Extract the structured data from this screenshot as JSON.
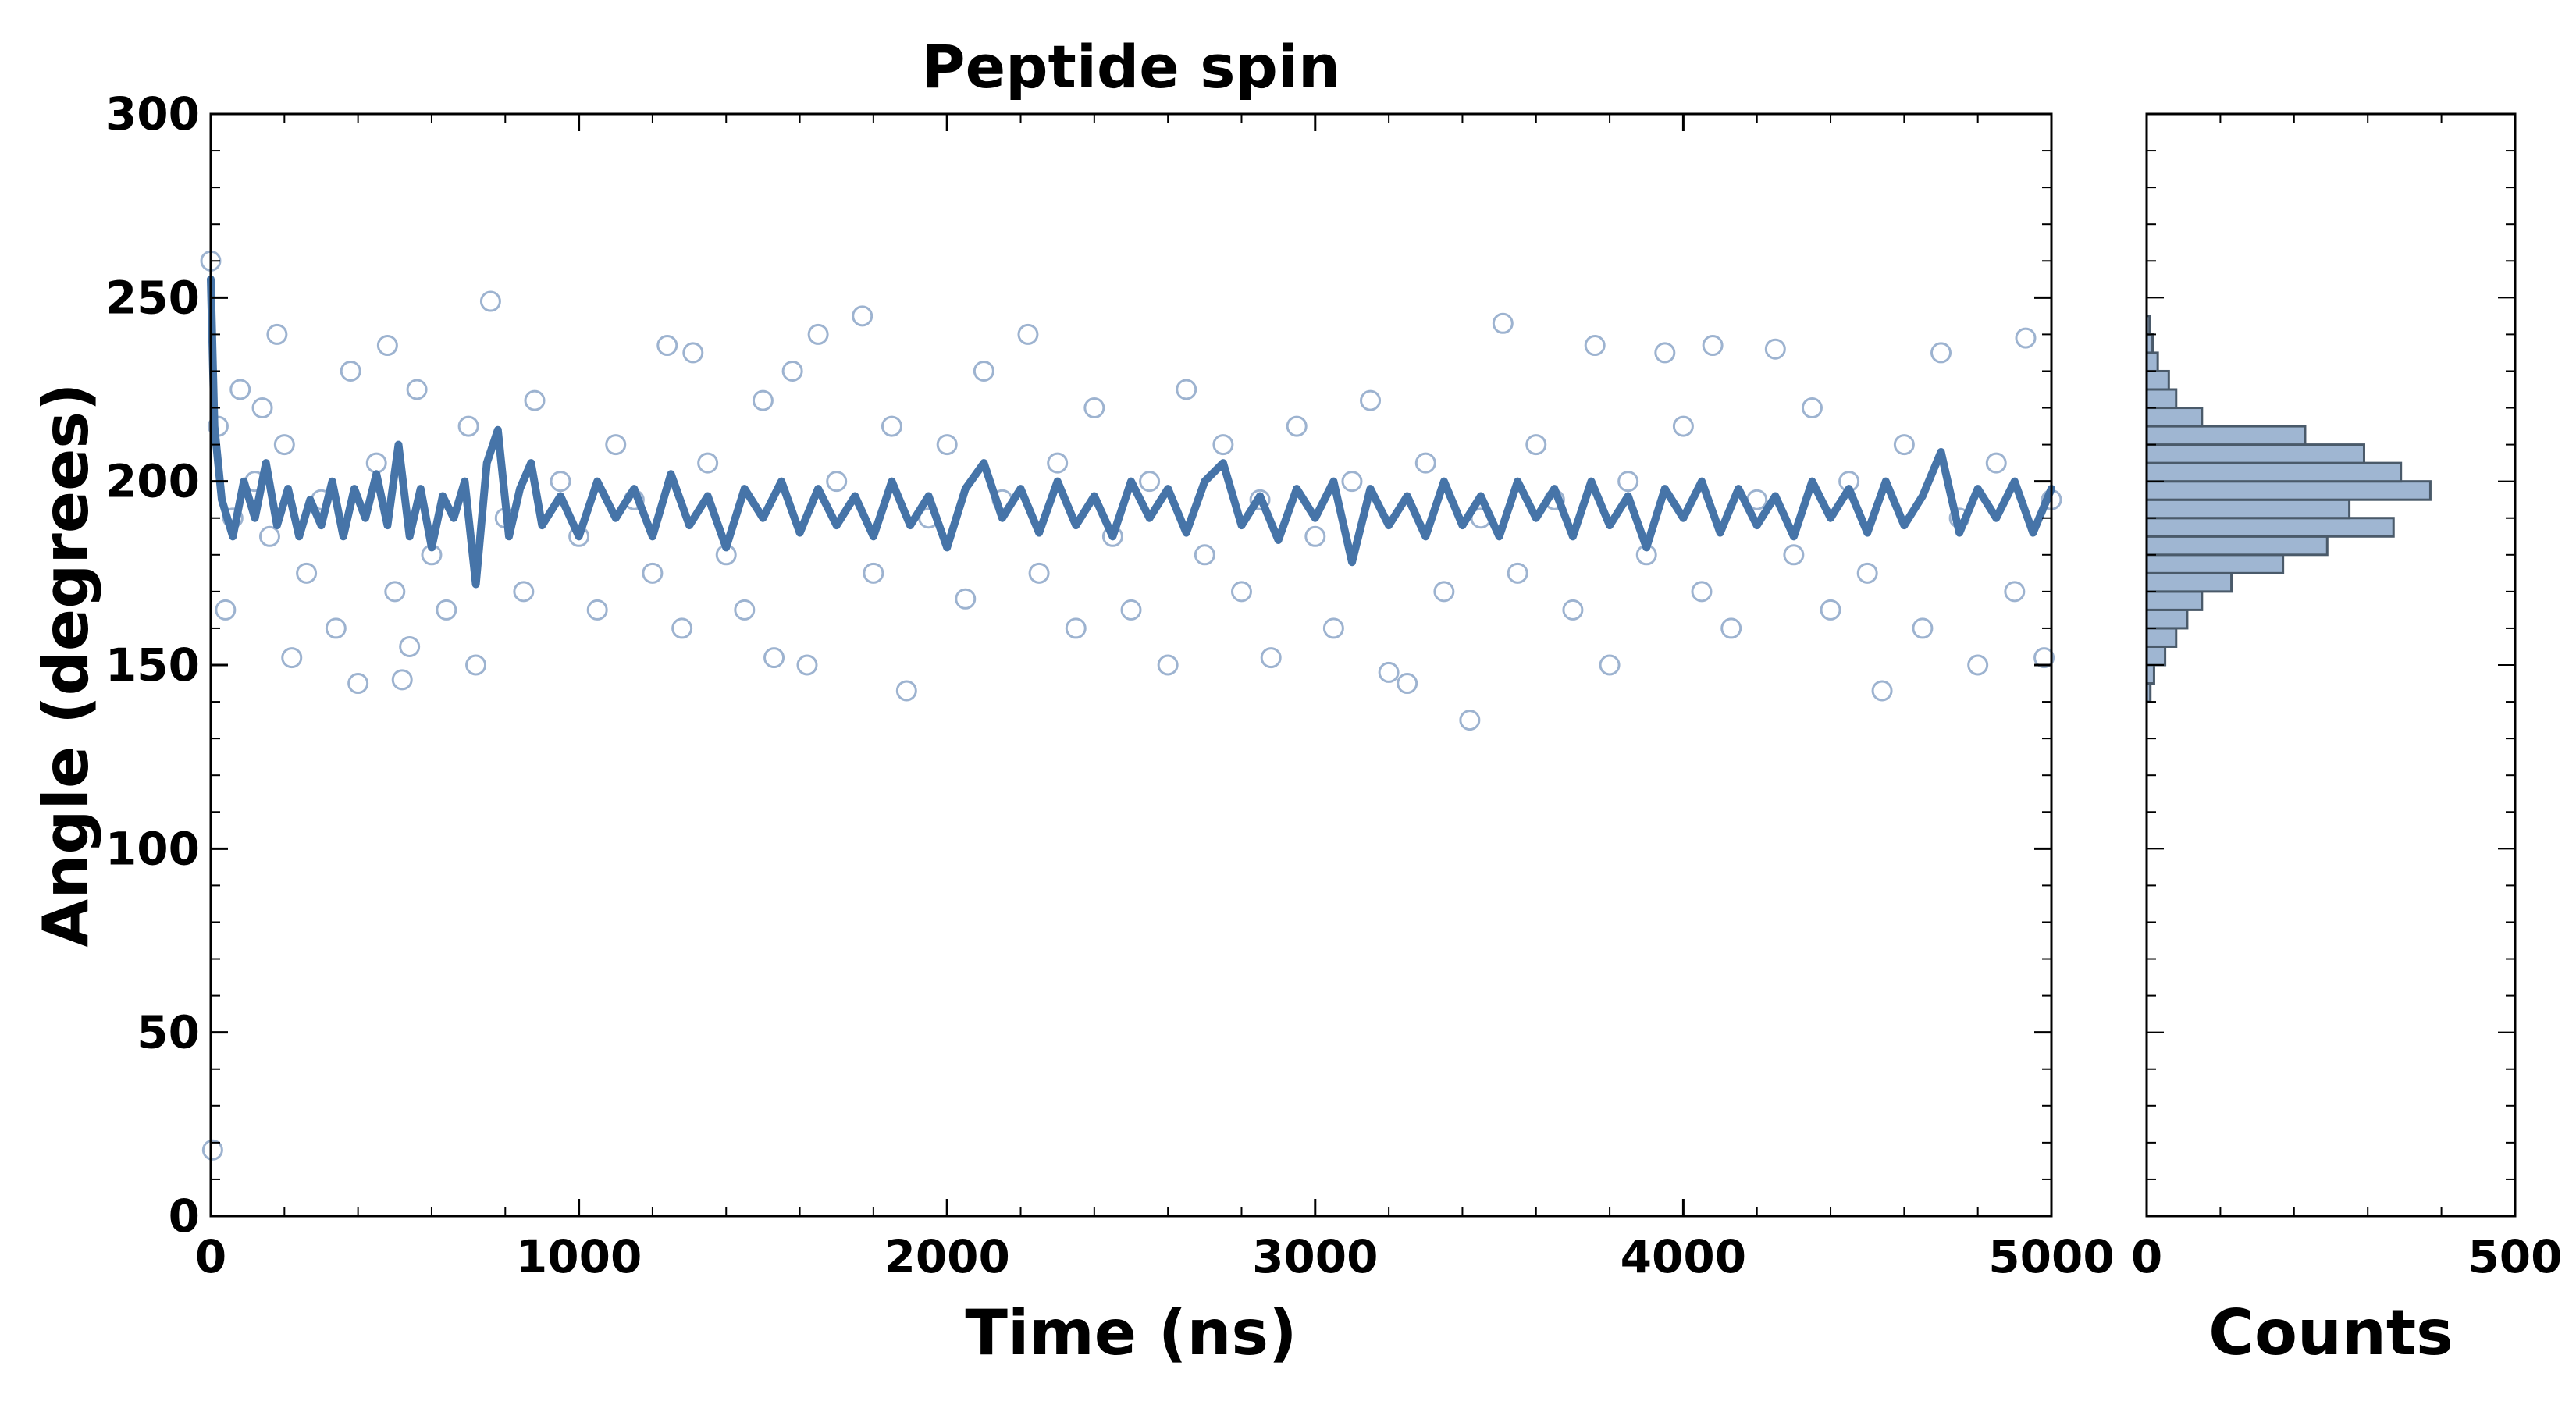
{
  "colors": {
    "series": "#4674a8",
    "scatter_edge": "#9db3d0",
    "hist_fill": "#9fb6d2",
    "hist_edge": "#4a5a6a",
    "axes": "#000000"
  },
  "chart_data": [
    {
      "type": "scatter",
      "title": "Peptide spin",
      "xlabel": "Time (ns)",
      "ylabel": "Angle (degrees)",
      "xlim": [
        0,
        5000
      ],
      "ylim": [
        0,
        300
      ],
      "xticks": [
        "0",
        "1000",
        "2000",
        "3000",
        "4000",
        "5000"
      ],
      "yticks": [
        "0",
        "50",
        "100",
        "150",
        "200",
        "250",
        "300"
      ],
      "grid": false,
      "series": [
        {
          "kind": "scatter",
          "marker": "open-circle",
          "points": [
            [
              0,
              260
            ],
            [
              5,
              18
            ],
            [
              20,
              215
            ],
            [
              40,
              165
            ],
            [
              60,
              190
            ],
            [
              80,
              225
            ],
            [
              120,
              200
            ],
            [
              140,
              220
            ],
            [
              160,
              185
            ],
            [
              180,
              240
            ],
            [
              200,
              210
            ],
            [
              220,
              152
            ],
            [
              260,
              175
            ],
            [
              300,
              195
            ],
            [
              340,
              160
            ],
            [
              380,
              230
            ],
            [
              400,
              145
            ],
            [
              450,
              205
            ],
            [
              480,
              237
            ],
            [
              500,
              170
            ],
            [
              520,
              146
            ],
            [
              540,
              155
            ],
            [
              560,
              225
            ],
            [
              600,
              180
            ],
            [
              640,
              165
            ],
            [
              700,
              215
            ],
            [
              720,
              150
            ],
            [
              760,
              249
            ],
            [
              800,
              190
            ],
            [
              850,
              170
            ],
            [
              880,
              222
            ],
            [
              950,
              200
            ],
            [
              1000,
              185
            ],
            [
              1050,
              165
            ],
            [
              1100,
              210
            ],
            [
              1150,
              195
            ],
            [
              1200,
              175
            ],
            [
              1240,
              237
            ],
            [
              1280,
              160
            ],
            [
              1310,
              235
            ],
            [
              1350,
              205
            ],
            [
              1400,
              180
            ],
            [
              1450,
              165
            ],
            [
              1500,
              222
            ],
            [
              1530,
              152
            ],
            [
              1580,
              230
            ],
            [
              1620,
              150
            ],
            [
              1650,
              240
            ],
            [
              1700,
              200
            ],
            [
              1770,
              245
            ],
            [
              1800,
              175
            ],
            [
              1850,
              215
            ],
            [
              1890,
              143
            ],
            [
              1950,
              190
            ],
            [
              2000,
              210
            ],
            [
              2050,
              168
            ],
            [
              2100,
              230
            ],
            [
              2150,
              195
            ],
            [
              2220,
              240
            ],
            [
              2250,
              175
            ],
            [
              2300,
              205
            ],
            [
              2350,
              160
            ],
            [
              2400,
              220
            ],
            [
              2450,
              185
            ],
            [
              2500,
              165
            ],
            [
              2550,
              200
            ],
            [
              2600,
              150
            ],
            [
              2650,
              225
            ],
            [
              2700,
              180
            ],
            [
              2750,
              210
            ],
            [
              2800,
              170
            ],
            [
              2850,
              195
            ],
            [
              2880,
              152
            ],
            [
              2950,
              215
            ],
            [
              3000,
              185
            ],
            [
              3050,
              160
            ],
            [
              3100,
              200
            ],
            [
              3150,
              222
            ],
            [
              3200,
              148
            ],
            [
              3250,
              145
            ],
            [
              3300,
              205
            ],
            [
              3350,
              170
            ],
            [
              3420,
              135
            ],
            [
              3450,
              190
            ],
            [
              3510,
              243
            ],
            [
              3550,
              175
            ],
            [
              3600,
              210
            ],
            [
              3650,
              195
            ],
            [
              3700,
              165
            ],
            [
              3760,
              237
            ],
            [
              3800,
              150
            ],
            [
              3850,
              200
            ],
            [
              3900,
              180
            ],
            [
              3950,
              235
            ],
            [
              4000,
              215
            ],
            [
              4050,
              170
            ],
            [
              4080,
              237
            ],
            [
              4130,
              160
            ],
            [
              4200,
              195
            ],
            [
              4250,
              236
            ],
            [
              4300,
              180
            ],
            [
              4350,
              220
            ],
            [
              4400,
              165
            ],
            [
              4450,
              200
            ],
            [
              4500,
              175
            ],
            [
              4540,
              143
            ],
            [
              4600,
              210
            ],
            [
              4650,
              160
            ],
            [
              4700,
              235
            ],
            [
              4750,
              190
            ],
            [
              4800,
              150
            ],
            [
              4850,
              205
            ],
            [
              4900,
              170
            ],
            [
              4930,
              239
            ],
            [
              4980,
              152
            ],
            [
              5000,
              195
            ]
          ]
        },
        {
          "kind": "line",
          "points": [
            [
              0,
              255
            ],
            [
              10,
              215
            ],
            [
              30,
              195
            ],
            [
              60,
              185
            ],
            [
              90,
              200
            ],
            [
              120,
              190
            ],
            [
              150,
              205
            ],
            [
              180,
              188
            ],
            [
              210,
              198
            ],
            [
              240,
              185
            ],
            [
              270,
              195
            ],
            [
              300,
              188
            ],
            [
              330,
              200
            ],
            [
              360,
              185
            ],
            [
              390,
              198
            ],
            [
              420,
              190
            ],
            [
              450,
              202
            ],
            [
              480,
              188
            ],
            [
              510,
              210
            ],
            [
              540,
              185
            ],
            [
              570,
              198
            ],
            [
              600,
              182
            ],
            [
              630,
              196
            ],
            [
              660,
              190
            ],
            [
              690,
              200
            ],
            [
              720,
              172
            ],
            [
              750,
              205
            ],
            [
              780,
              214
            ],
            [
              810,
              185
            ],
            [
              840,
              198
            ],
            [
              870,
              205
            ],
            [
              900,
              188
            ],
            [
              950,
              196
            ],
            [
              1000,
              185
            ],
            [
              1050,
              200
            ],
            [
              1100,
              190
            ],
            [
              1150,
              198
            ],
            [
              1200,
              185
            ],
            [
              1250,
              202
            ],
            [
              1300,
              188
            ],
            [
              1350,
              196
            ],
            [
              1400,
              182
            ],
            [
              1450,
              198
            ],
            [
              1500,
              190
            ],
            [
              1550,
              200
            ],
            [
              1600,
              186
            ],
            [
              1650,
              198
            ],
            [
              1700,
              188
            ],
            [
              1750,
              196
            ],
            [
              1800,
              185
            ],
            [
              1850,
              200
            ],
            [
              1900,
              188
            ],
            [
              1950,
              196
            ],
            [
              2000,
              182
            ],
            [
              2050,
              198
            ],
            [
              2100,
              205
            ],
            [
              2150,
              190
            ],
            [
              2200,
              198
            ],
            [
              2250,
              186
            ],
            [
              2300,
              200
            ],
            [
              2350,
              188
            ],
            [
              2400,
              196
            ],
            [
              2450,
              185
            ],
            [
              2500,
              200
            ],
            [
              2550,
              190
            ],
            [
              2600,
              198
            ],
            [
              2650,
              186
            ],
            [
              2700,
              200
            ],
            [
              2750,
              205
            ],
            [
              2800,
              188
            ],
            [
              2850,
              196
            ],
            [
              2900,
              184
            ],
            [
              2950,
              198
            ],
            [
              3000,
              190
            ],
            [
              3050,
              200
            ],
            [
              3100,
              178
            ],
            [
              3150,
              198
            ],
            [
              3200,
              188
            ],
            [
              3250,
              196
            ],
            [
              3300,
              185
            ],
            [
              3350,
              200
            ],
            [
              3400,
              188
            ],
            [
              3450,
              196
            ],
            [
              3500,
              185
            ],
            [
              3550,
              200
            ],
            [
              3600,
              190
            ],
            [
              3650,
              198
            ],
            [
              3700,
              185
            ],
            [
              3750,
              200
            ],
            [
              3800,
              188
            ],
            [
              3850,
              196
            ],
            [
              3900,
              182
            ],
            [
              3950,
              198
            ],
            [
              4000,
              190
            ],
            [
              4050,
              200
            ],
            [
              4100,
              186
            ],
            [
              4150,
              198
            ],
            [
              4200,
              188
            ],
            [
              4250,
              196
            ],
            [
              4300,
              185
            ],
            [
              4350,
              200
            ],
            [
              4400,
              190
            ],
            [
              4450,
              198
            ],
            [
              4500,
              186
            ],
            [
              4550,
              200
            ],
            [
              4600,
              188
            ],
            [
              4650,
              196
            ],
            [
              4700,
              208
            ],
            [
              4750,
              186
            ],
            [
              4800,
              198
            ],
            [
              4850,
              190
            ],
            [
              4900,
              200
            ],
            [
              4950,
              186
            ],
            [
              5000,
              198
            ]
          ]
        }
      ]
    },
    {
      "type": "bar",
      "orientation": "horizontal",
      "xlabel": "Counts",
      "xlim": [
        0,
        500
      ],
      "ylim": [
        0,
        300
      ],
      "xticks": [
        "0",
        "500"
      ],
      "grid": false,
      "bin_edges": [
        140,
        145,
        150,
        155,
        160,
        165,
        170,
        175,
        180,
        185,
        190,
        195,
        200,
        205,
        210,
        215,
        220,
        225,
        230,
        235,
        240,
        245
      ],
      "counts": [
        5,
        10,
        25,
        40,
        55,
        75,
        115,
        185,
        245,
        335,
        275,
        385,
        345,
        295,
        215,
        75,
        40,
        30,
        15,
        8,
        4
      ]
    }
  ]
}
